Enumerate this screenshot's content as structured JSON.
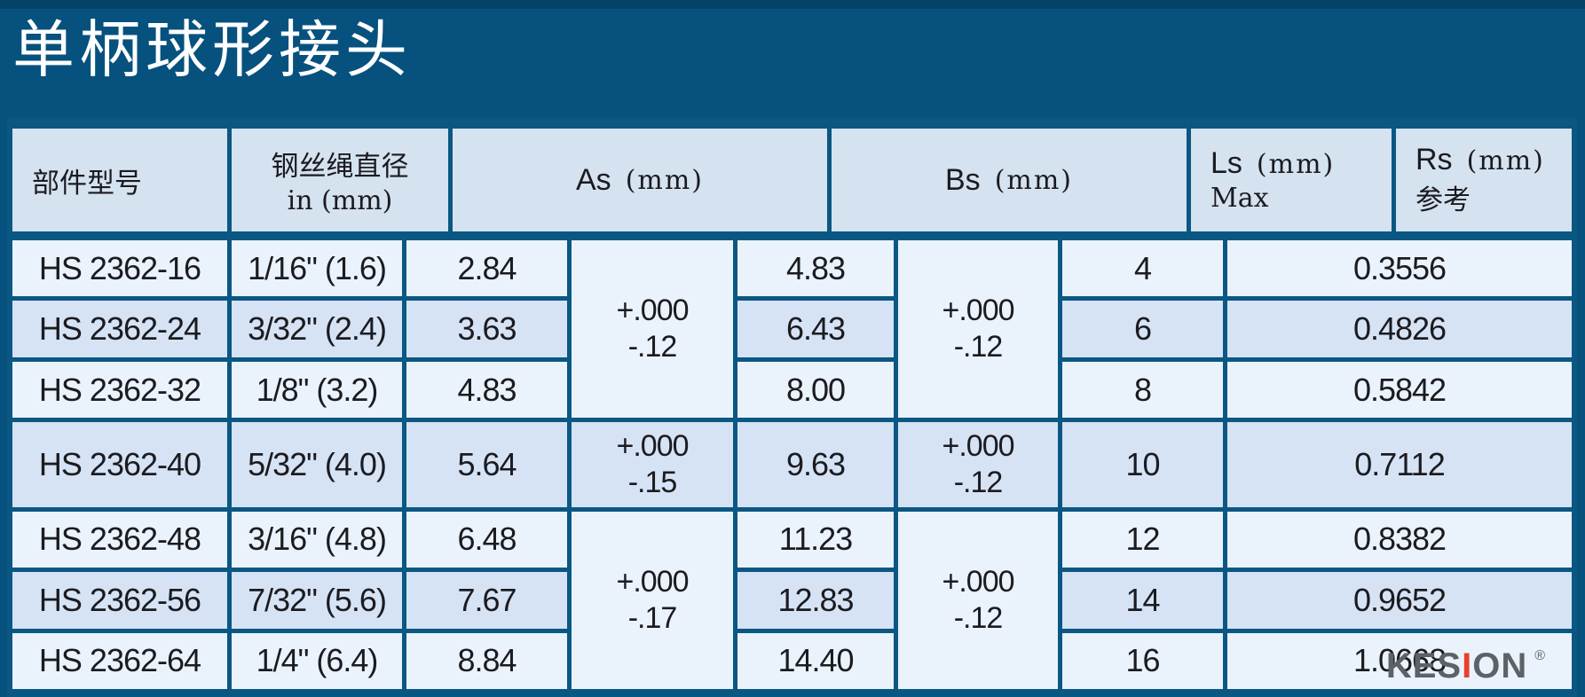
{
  "page": {
    "title": "单柄球形接头"
  },
  "colors": {
    "page_background": "#06517e",
    "top_strip": "#03436a",
    "table_border": "#0b5783",
    "header_cell": "#d5e2f0",
    "row_light": "#eaf3fb",
    "row_shade": "#d6e3f4",
    "text": "#1b1b20",
    "title_text": "#ffffff",
    "logo_gray": "#5d6267",
    "logo_red": "#e8402c"
  },
  "table": {
    "header": {
      "part_model": "部件型号",
      "wire_dia_line1": "钢丝绳直径",
      "wire_dia_line2": "in (mm)",
      "as_label": "As",
      "bs_label": "Bs",
      "ls_label": "Ls",
      "rs_label": "Rs",
      "unit": "(mm)",
      "ls_sub": "Max",
      "rs_sub": "参考"
    },
    "rows": [
      {
        "model": "HS 2362-16",
        "dia": "1/16\" (1.6)",
        "as": "2.84",
        "bs": "4.83",
        "ls": "4",
        "rs": "0.3556"
      },
      {
        "model": "HS 2362-24",
        "dia": "3/32\" (2.4)",
        "as": "3.63",
        "bs": "6.43",
        "ls": "6",
        "rs": "0.4826"
      },
      {
        "model": "HS 2362-32",
        "dia": "1/8\" (3.2)",
        "as": "4.83",
        "bs": "8.00",
        "ls": "8",
        "rs": "0.5842"
      },
      {
        "model": "HS 2362-40",
        "dia": "5/32\" (4.0)",
        "as": "5.64",
        "bs": "9.63",
        "ls": "10",
        "rs": "0.7112"
      },
      {
        "model": "HS 2362-48",
        "dia": "3/16\" (4.8)",
        "as": "6.48",
        "bs": "11.23",
        "ls": "12",
        "rs": "0.8382"
      },
      {
        "model": "HS 2362-56",
        "dia": "7/32\" (5.6)",
        "as": "7.67",
        "bs": "12.83",
        "ls": "14",
        "rs": "0.9652"
      },
      {
        "model": "HS 2362-64",
        "dia": "1/4\" (6.4)",
        "as": "8.84",
        "bs": "14.40",
        "ls": "16",
        "rs": "1.0668"
      }
    ],
    "as_tolerances": [
      {
        "rows": "1-3",
        "plus": "+.000",
        "minus": "-.12"
      },
      {
        "rows": "4",
        "plus": "+.000",
        "minus": "-.15"
      },
      {
        "rows": "5-7",
        "plus": "+.000",
        "minus": "-.17"
      }
    ],
    "bs_tolerances": [
      {
        "rows": "1-3",
        "plus": "+.000",
        "minus": "-.12"
      },
      {
        "rows": "4",
        "plus": "+.000",
        "minus": "-.12"
      },
      {
        "rows": "5-7",
        "plus": "+.000",
        "minus": "-.12"
      }
    ]
  },
  "logo": {
    "part1": "KES",
    "accent_letter": "I",
    "part2": "ON",
    "registered": "®"
  }
}
